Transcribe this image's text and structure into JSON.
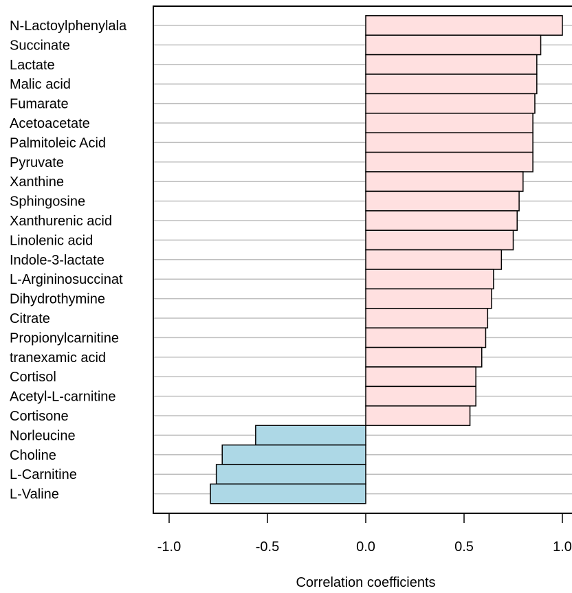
{
  "chart_data": {
    "type": "bar",
    "orientation": "horizontal",
    "title": "",
    "xlabel": "Correlation coefficients",
    "ylabel": "",
    "xlim": [
      -1.0,
      1.0
    ],
    "xticks": [
      "-1.0",
      "-0.5",
      "0.0",
      "0.5",
      "1.0"
    ],
    "grid": "horizontal lines at each category",
    "colors": {
      "positive": "#ffe0e0",
      "negative": "#add8e6",
      "grid": "#bebebe",
      "edge": "#000000"
    },
    "categories": [
      "N-Lactoylphenylala",
      "Succinate",
      "Lactate",
      "Malic acid",
      "Fumarate",
      "Acetoacetate",
      "Palmitoleic Acid",
      "Pyruvate",
      "Xanthine",
      "Sphingosine",
      "Xanthurenic acid",
      "Linolenic acid",
      "Indole-3-lactate",
      "L-Argininosuccinat",
      "Dihydrothymine",
      "Citrate",
      "Propionylcarnitine",
      "tranexamic acid",
      "Cortisol",
      "Acetyl-L-carnitine",
      "Cortisone",
      "Norleucine",
      "Choline",
      "L-Carnitine",
      "L-Valine"
    ],
    "values": [
      1.0,
      0.89,
      0.87,
      0.87,
      0.86,
      0.85,
      0.85,
      0.85,
      0.8,
      0.78,
      0.77,
      0.75,
      0.69,
      0.65,
      0.64,
      0.62,
      0.61,
      0.59,
      0.56,
      0.56,
      0.53,
      -0.56,
      -0.73,
      -0.76,
      -0.79
    ]
  }
}
